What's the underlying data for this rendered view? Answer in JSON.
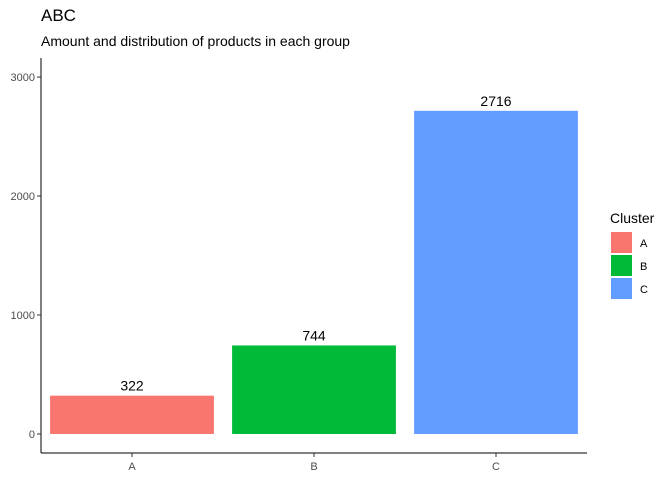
{
  "chart_data": {
    "type": "bar",
    "title": "ABC",
    "subtitle": "Amount and distribution of products in each group",
    "xlabel": "",
    "ylabel": "",
    "categories": [
      "A",
      "B",
      "C"
    ],
    "values": [
      322,
      744,
      2716
    ],
    "colors": [
      "#F8766D",
      "#00BA38",
      "#619CFF"
    ],
    "ylim": [
      -160,
      3160
    ],
    "yticks": [
      0,
      1000,
      2000,
      3000
    ],
    "grid": false,
    "legend": {
      "title": "Cluster",
      "placement": "right",
      "entries": [
        "A",
        "B",
        "C"
      ]
    }
  }
}
